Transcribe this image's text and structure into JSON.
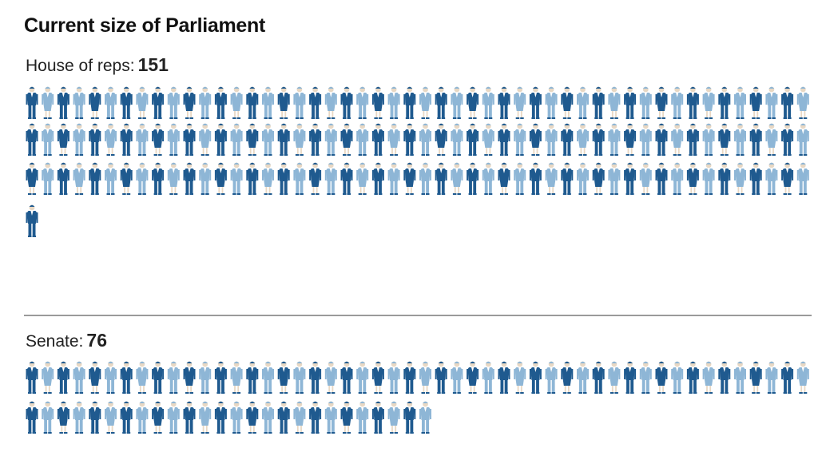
{
  "title": "Current size of Parliament",
  "houses": [
    {
      "label": "House of reps:",
      "count": "151"
    },
    {
      "label": "Senate:",
      "count": "76"
    }
  ],
  "colors": {
    "figure_dark": "#1f5a8f",
    "figure_light": "#8eb6d6",
    "divider": "#9a9a9a"
  },
  "chart_data": {
    "type": "isotype",
    "title": "Current size of Parliament",
    "categories": [
      "House of reps",
      "Senate"
    ],
    "values": [
      151,
      76
    ],
    "unit": "members (one figure per member)"
  }
}
